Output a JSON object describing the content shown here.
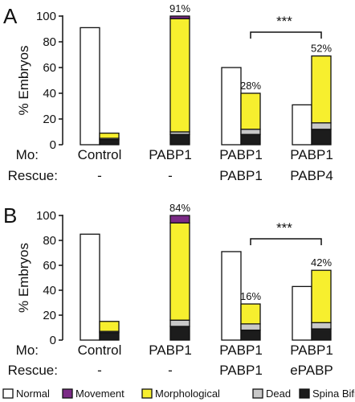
{
  "colors": {
    "normal": "#ffffff",
    "movement": "#7b2a86",
    "morphological": "#f7ef2e",
    "dead": "#c8c8c8",
    "spina_bifida": "#1c1c1c",
    "stroke": "#111111"
  },
  "row_labels": {
    "mo": "Mo:",
    "rescue": "Rescue:"
  },
  "legend": [
    {
      "key": "normal",
      "label": "Normal"
    },
    {
      "key": "movement",
      "label": "Movement"
    },
    {
      "key": "morphological",
      "label": "Morphological"
    },
    {
      "key": "dead",
      "label": "Dead"
    },
    {
      "key": "spina_bifida",
      "label": "Spina Bifida"
    }
  ],
  "chart_data": [
    {
      "type": "bar",
      "panel": "A",
      "ylabel": "% Embryos",
      "ylim": [
        0,
        100
      ],
      "yticks": [
        0,
        20,
        40,
        60,
        80,
        100
      ],
      "groups": [
        {
          "mo": "Control",
          "rescue": "-"
        },
        {
          "mo": "PABP1",
          "rescue": "-"
        },
        {
          "mo": "PABP1",
          "rescue": "PABP1"
        },
        {
          "mo": "PABP1",
          "rescue": "PABP4"
        }
      ],
      "bars": [
        {
          "group": 0,
          "normal": 91
        },
        {
          "group": 0,
          "stack": {
            "spina_bifida": 4,
            "dead": 1,
            "morphological": 4,
            "movement": 0
          }
        },
        {
          "group": 1,
          "normal": 0
        },
        {
          "group": 1,
          "stack": {
            "spina_bifida": 8,
            "dead": 2,
            "morphological": 88,
            "movement": 2
          },
          "label": "91%"
        },
        {
          "group": 2,
          "normal": 60
        },
        {
          "group": 2,
          "stack": {
            "spina_bifida": 8,
            "dead": 4,
            "morphological": 28,
            "movement": 0
          },
          "label": "28%"
        },
        {
          "group": 3,
          "normal": 31
        },
        {
          "group": 3,
          "stack": {
            "spina_bifida": 12,
            "dead": 5,
            "morphological": 52,
            "movement": 0
          },
          "label": "52%"
        }
      ],
      "significance": {
        "from_bar": 5,
        "to_bar": 7,
        "label": "***"
      }
    },
    {
      "type": "bar",
      "panel": "B",
      "ylabel": "% Embryos",
      "ylim": [
        0,
        100
      ],
      "yticks": [
        0,
        20,
        40,
        60,
        80,
        100
      ],
      "groups": [
        {
          "mo": "Control",
          "rescue": "-"
        },
        {
          "mo": "PABP1",
          "rescue": "-"
        },
        {
          "mo": "PABP1",
          "rescue": "PABP1"
        },
        {
          "mo": "PABP1",
          "rescue": "ePABP"
        }
      ],
      "bars": [
        {
          "group": 0,
          "normal": 85
        },
        {
          "group": 0,
          "stack": {
            "spina_bifida": 6,
            "dead": 1,
            "morphological": 8,
            "movement": 0
          }
        },
        {
          "group": 1,
          "normal": 0
        },
        {
          "group": 1,
          "stack": {
            "spina_bifida": 11,
            "dead": 5,
            "morphological": 78,
            "movement": 6
          },
          "label": "84%"
        },
        {
          "group": 2,
          "normal": 71
        },
        {
          "group": 2,
          "stack": {
            "spina_bifida": 8,
            "dead": 5,
            "morphological": 16,
            "movement": 0
          },
          "label": "16%"
        },
        {
          "group": 3,
          "normal": 43
        },
        {
          "group": 3,
          "stack": {
            "spina_bifida": 9,
            "dead": 5,
            "morphological": 42,
            "movement": 0
          },
          "label": "42%"
        }
      ],
      "significance": {
        "from_bar": 5,
        "to_bar": 7,
        "label": "***"
      }
    }
  ]
}
